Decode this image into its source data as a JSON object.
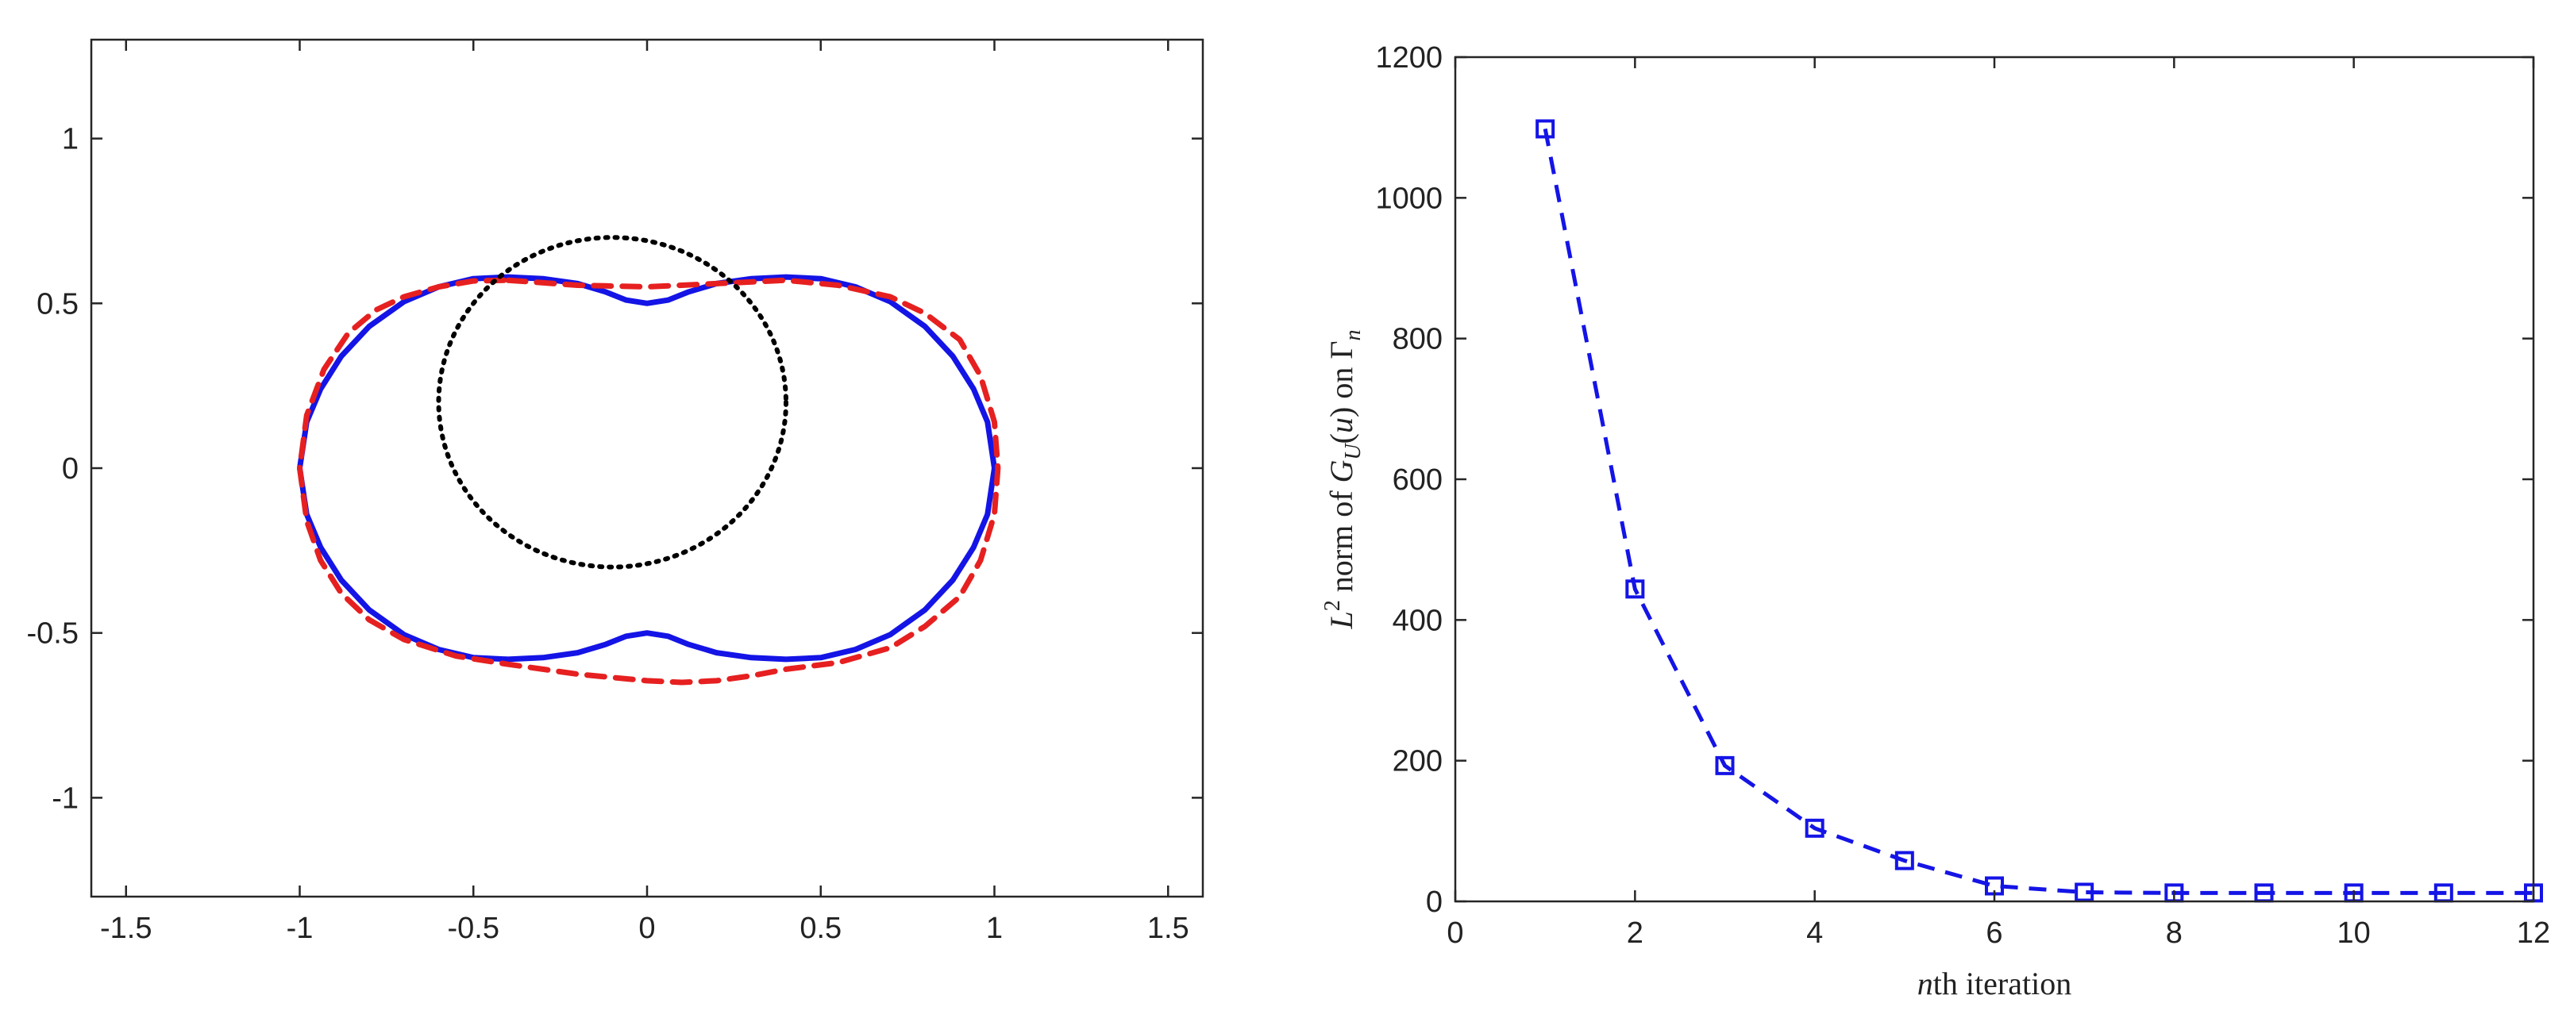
{
  "chart_data": [
    {
      "type": "line",
      "panel": "left",
      "title": "",
      "xlabel": "",
      "ylabel": "",
      "xlim": [
        -1.6,
        1.6
      ],
      "ylim": [
        -1.3,
        1.3
      ],
      "xticks": [
        -1.5,
        -1,
        -0.5,
        0,
        0.5,
        1,
        1.5
      ],
      "xtick_labels": [
        "-1.5",
        "-1",
        "-0.5",
        "0",
        "0.5",
        "1",
        "1.5"
      ],
      "yticks": [
        -1,
        -0.5,
        0,
        0.5,
        1
      ],
      "ytick_labels": [
        "-1",
        "-0.5",
        "0",
        "0.5",
        "1"
      ],
      "grid": false,
      "series": [
        {
          "style": "solid",
          "color": "#1414e6",
          "x": [
            0.0,
            0.06,
            0.12,
            0.2,
            0.3,
            0.4,
            0.5,
            0.6,
            0.7,
            0.8,
            0.88,
            0.94,
            0.98,
            1.0,
            0.98,
            0.94,
            0.88,
            0.8,
            0.7,
            0.6,
            0.5,
            0.4,
            0.3,
            0.2,
            0.12,
            0.06,
            0.0,
            -0.06,
            -0.12,
            -0.2,
            -0.3,
            -0.4,
            -0.5,
            -0.6,
            -0.7,
            -0.8,
            -0.88,
            -0.94,
            -0.98,
            -1.0,
            -0.98,
            -0.94,
            -0.88,
            -0.8,
            -0.7,
            -0.6,
            -0.5,
            -0.4,
            -0.3,
            -0.2,
            -0.12,
            -0.06,
            0.0
          ],
          "y": [
            0.5,
            0.51,
            0.535,
            0.56,
            0.575,
            0.58,
            0.575,
            0.55,
            0.505,
            0.43,
            0.34,
            0.24,
            0.14,
            0.0,
            -0.14,
            -0.24,
            -0.34,
            -0.43,
            -0.505,
            -0.55,
            -0.575,
            -0.58,
            -0.575,
            -0.56,
            -0.535,
            -0.51,
            -0.5,
            -0.51,
            -0.535,
            -0.56,
            -0.575,
            -0.58,
            -0.575,
            -0.55,
            -0.505,
            -0.43,
            -0.34,
            -0.24,
            -0.14,
            0.0,
            0.14,
            0.24,
            0.34,
            0.43,
            0.505,
            0.55,
            0.575,
            0.58,
            0.575,
            0.56,
            0.535,
            0.51,
            0.5
          ]
        },
        {
          "style": "dashed",
          "color": "#e62020",
          "x": [
            -0.4,
            -0.2,
            0.0,
            0.2,
            0.4,
            0.55,
            0.7,
            0.8,
            0.9,
            0.96,
            1.0,
            1.01,
            1.0,
            0.96,
            0.9,
            0.8,
            0.7,
            0.55,
            0.4,
            0.3,
            0.2,
            0.1,
            0.0,
            -0.1,
            -0.2,
            -0.3,
            -0.4,
            -0.55,
            -0.7,
            -0.8,
            -0.88,
            -0.94,
            -0.98,
            -1.0,
            -0.98,
            -0.93,
            -0.86,
            -0.78,
            -0.7,
            -0.6,
            -0.5,
            -0.4
          ],
          "y": [
            0.57,
            0.555,
            0.55,
            0.56,
            0.57,
            0.555,
            0.52,
            0.47,
            0.39,
            0.28,
            0.14,
            0.0,
            -0.14,
            -0.28,
            -0.39,
            -0.48,
            -0.545,
            -0.59,
            -0.61,
            -0.63,
            -0.645,
            -0.65,
            -0.645,
            -0.635,
            -0.625,
            -0.61,
            -0.595,
            -0.57,
            -0.52,
            -0.46,
            -0.38,
            -0.28,
            -0.16,
            0.0,
            0.16,
            0.3,
            0.41,
            0.48,
            0.52,
            0.55,
            0.568,
            0.57
          ]
        },
        {
          "style": "dotted",
          "color": "#000000",
          "shape": "circle",
          "center": [
            -0.1,
            0.2
          ],
          "radius": 0.5
        }
      ]
    },
    {
      "type": "line",
      "panel": "right",
      "title": "",
      "xlabel": "nth iteration",
      "ylabel": "L2 norm of GU(u) on Γn",
      "xlim": [
        0,
        12
      ],
      "ylim": [
        0,
        1200
      ],
      "xticks": [
        0,
        2,
        4,
        6,
        8,
        10,
        12
      ],
      "xtick_labels": [
        "0",
        "2",
        "4",
        "6",
        "8",
        "10",
        "12"
      ],
      "yticks": [
        0,
        200,
        400,
        600,
        800,
        1000,
        1200
      ],
      "ytick_labels": [
        "0",
        "200",
        "400",
        "600",
        "800",
        "1000",
        "1200"
      ],
      "grid": false,
      "series": [
        {
          "style": "dashed",
          "marker": "square",
          "color": "#1414e6",
          "x": [
            1,
            2,
            3,
            4,
            5,
            6,
            7,
            8,
            9,
            10,
            11,
            12
          ],
          "y": [
            1098,
            444,
            193,
            104,
            58,
            22,
            13,
            12,
            12,
            12,
            12,
            12
          ]
        }
      ]
    }
  ]
}
